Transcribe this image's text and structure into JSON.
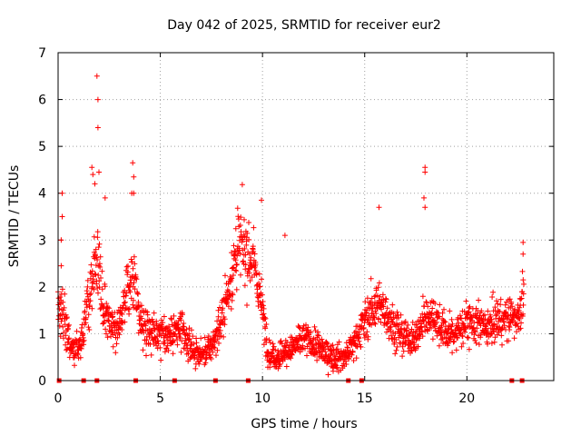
{
  "chart_data": {
    "type": "scatter",
    "title": "Day 042 of 2025, SRMTID for receiver eur2",
    "xlabel": "GPS time / hours",
    "ylabel": "SRMTID / TECUs",
    "xlim": [
      0,
      24.25
    ],
    "ylim": [
      0,
      7
    ],
    "xticks": [
      0,
      5,
      10,
      15,
      20
    ],
    "yticks": [
      0,
      1,
      2,
      3,
      4,
      5,
      6,
      7
    ],
    "grid": true,
    "marker": "+",
    "color": "#ff0000",
    "series": [
      {
        "name": "SRMTID",
        "profile_x": [
          0.0,
          0.2,
          0.4,
          0.6,
          0.8,
          1.0,
          1.2,
          1.5,
          1.8,
          2.0,
          2.2,
          2.5,
          2.8,
          3.0,
          3.3,
          3.6,
          3.8,
          4.0,
          4.5,
          5.0,
          5.5,
          6.0,
          6.3,
          6.7,
          7.0,
          7.5,
          8.0,
          8.5,
          8.8,
          9.2,
          9.6,
          10.0,
          10.3,
          10.7,
          11.0,
          11.5,
          12.0,
          12.5,
          13.0,
          13.5,
          14.0,
          14.5,
          15.0,
          15.5,
          16.0,
          16.5,
          17.0,
          17.5,
          18.0,
          18.5,
          19.0,
          19.5,
          20.0,
          20.5,
          21.0,
          21.5,
          22.0,
          22.5,
          22.8
        ],
        "profile_y": [
          1.5,
          1.6,
          1.2,
          0.7,
          0.6,
          0.7,
          1.0,
          1.8,
          2.6,
          2.5,
          1.6,
          1.3,
          1.1,
          1.3,
          1.7,
          2.2,
          2.0,
          1.3,
          1.1,
          1.0,
          1.0,
          1.1,
          0.8,
          0.6,
          0.55,
          0.7,
          1.3,
          2.3,
          2.9,
          2.8,
          2.5,
          1.5,
          0.6,
          0.5,
          0.6,
          0.7,
          0.9,
          0.8,
          0.6,
          0.5,
          0.5,
          0.8,
          1.3,
          1.6,
          1.5,
          1.1,
          0.9,
          0.9,
          1.4,
          1.3,
          1.0,
          1.0,
          1.3,
          1.2,
          1.1,
          1.3,
          1.3,
          1.4,
          1.9
        ],
        "spikes": [
          {
            "x": 0.2,
            "y": 4.0
          },
          {
            "x": 0.2,
            "y": 3.5
          },
          {
            "x": 0.15,
            "y": 3.0
          },
          {
            "x": 0.15,
            "y": 2.45
          },
          {
            "x": 1.9,
            "y": 6.5
          },
          {
            "x": 1.95,
            "y": 6.0
          },
          {
            "x": 1.95,
            "y": 5.4
          },
          {
            "x": 1.65,
            "y": 4.55
          },
          {
            "x": 1.7,
            "y": 4.4
          },
          {
            "x": 1.8,
            "y": 4.2
          },
          {
            "x": 2.0,
            "y": 4.45
          },
          {
            "x": 2.3,
            "y": 3.9
          },
          {
            "x": 3.65,
            "y": 4.65
          },
          {
            "x": 3.7,
            "y": 4.35
          },
          {
            "x": 3.6,
            "y": 4.0
          },
          {
            "x": 3.7,
            "y": 4.0
          },
          {
            "x": 9.95,
            "y": 3.85
          },
          {
            "x": 11.1,
            "y": 3.1
          },
          {
            "x": 15.7,
            "y": 3.7
          },
          {
            "x": 17.95,
            "y": 4.55
          },
          {
            "x": 17.95,
            "y": 4.45
          },
          {
            "x": 17.9,
            "y": 3.9
          },
          {
            "x": 17.95,
            "y": 3.7
          },
          {
            "x": 22.75,
            "y": 2.95
          },
          {
            "x": 22.75,
            "y": 2.7
          }
        ],
        "zero_markers": [
          0.05,
          1.25,
          1.9,
          3.8,
          5.7,
          7.7,
          9.3,
          14.2,
          14.85,
          22.2,
          22.7
        ]
      }
    ]
  }
}
